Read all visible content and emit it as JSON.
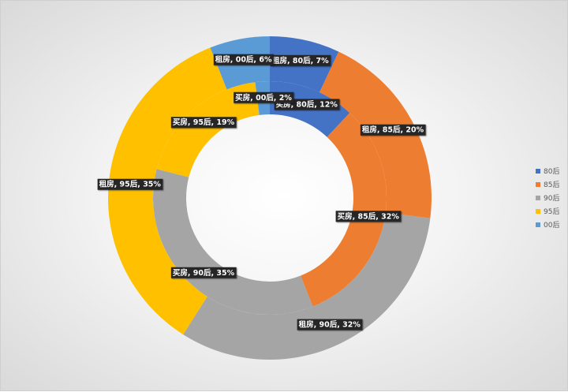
{
  "chart_data": {
    "type": "doughnut",
    "categories": [
      "80后",
      "85后",
      "90后",
      "95后",
      "00后"
    ],
    "series": [
      {
        "name": "买房",
        "values": [
          12,
          32,
          35,
          19,
          2
        ]
      },
      {
        "name": "租房",
        "values": [
          7,
          20,
          32,
          35,
          6
        ]
      }
    ],
    "labels": [
      [
        "买房, 80后, 12%",
        "买房, 85后, 32%",
        "买房, 90后, 35%",
        "买房, 95后, 19%",
        "买房, 00后, 2%"
      ],
      [
        "租房, 80后, 7%",
        "租房, 85后, 20%",
        "租房, 90后, 32%",
        "租房, 95后, 35%",
        "租房, 00后, 6%"
      ]
    ],
    "colors": [
      "#4472C4",
      "#ED7D31",
      "#A5A5A5",
      "#FFC000",
      "#5B9BD5"
    ],
    "legend_position": "right"
  }
}
